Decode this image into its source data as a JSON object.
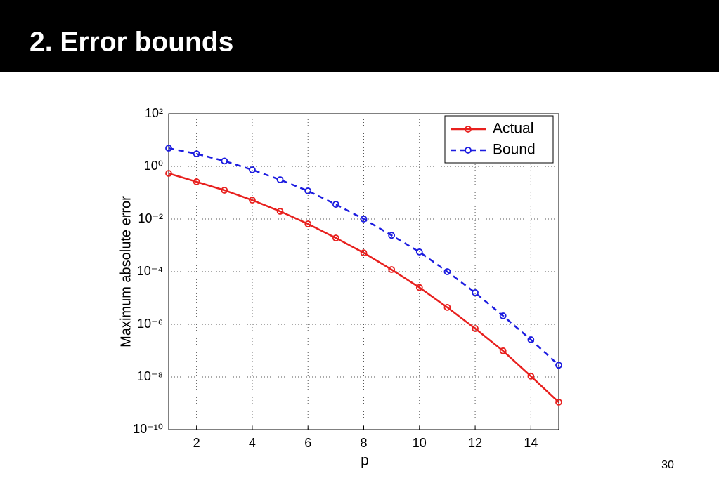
{
  "header": {
    "title": "2. Error bounds"
  },
  "page_number": "30",
  "chart_data": {
    "type": "line",
    "x_label": "p",
    "y_label": "Maximum absolute error",
    "x": [
      1,
      2,
      3,
      4,
      5,
      6,
      7,
      8,
      9,
      10,
      11,
      12,
      13,
      14,
      15
    ],
    "series": [
      {
        "name": "Actual",
        "color": "#e8201e",
        "line_style": "solid",
        "values": [
          0.54,
          0.26,
          0.124,
          0.052,
          0.0196,
          0.0065,
          0.0019,
          0.00052,
          0.00012,
          2.5e-05,
          4.4e-06,
          6.9e-07,
          9.8e-08,
          1.07e-08,
          1.1e-09
        ]
      },
      {
        "name": "Bound",
        "color": "#1c1ce0",
        "line_style": "dashed",
        "values": [
          4.9,
          3.0,
          1.6,
          0.74,
          0.31,
          0.117,
          0.036,
          0.01,
          0.0024,
          0.00056,
          0.0001,
          1.6e-05,
          2.1e-06,
          2.6e-07,
          2.8e-08
        ]
      }
    ],
    "xlim": [
      1,
      15
    ],
    "xticks": [
      2,
      4,
      6,
      8,
      10,
      12,
      14
    ],
    "ylim": [
      1e-10,
      100
    ],
    "y_log": true,
    "yticks": [
      {
        "value": 100,
        "label": "10²"
      },
      {
        "value": 1,
        "label": "10⁰"
      },
      {
        "value": 0.01,
        "label": "10⁻²"
      },
      {
        "value": 0.0001,
        "label": "10⁻⁴"
      },
      {
        "value": 1e-06,
        "label": "10⁻⁶"
      },
      {
        "value": 1e-08,
        "label": "10⁻⁸"
      },
      {
        "value": 1e-10,
        "label": "10⁻¹⁰"
      }
    ],
    "grid": true,
    "legend": "upper right"
  }
}
